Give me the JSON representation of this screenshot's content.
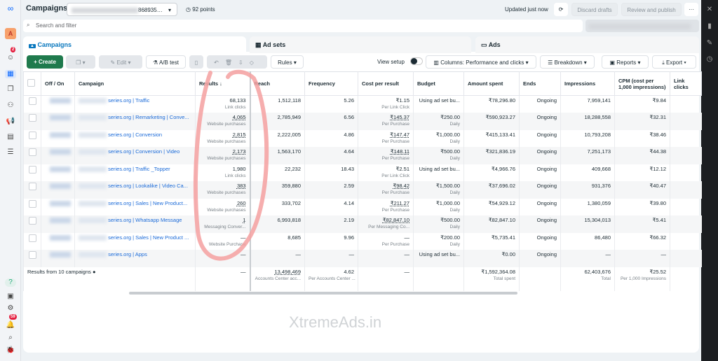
{
  "header": {
    "title": "Campaigns",
    "account_suffix": "868935…",
    "points": "92 points",
    "updated": "Updated just now",
    "discard": "Discard drafts",
    "review": "Review and publish",
    "more": "···"
  },
  "sidebar": {
    "avatar": "A",
    "notif_badge": "2",
    "alerts_badge": "59",
    "help": "?"
  },
  "search": {
    "placeholder": "Search and filter"
  },
  "tabs": [
    {
      "label": "Campaigns"
    },
    {
      "label": "Ad sets"
    },
    {
      "label": "Ads"
    }
  ],
  "toolbar": {
    "create": "+ Create",
    "edit": "Edit",
    "ab_test": "A/B test",
    "rules": "Rules ▾",
    "view_setup": "View setup",
    "columns": "Columns: Performance and clicks ▾",
    "breakdown": "Breakdown ▾",
    "reports": "Reports ▾",
    "export": "Export ▾"
  },
  "columns": [
    "Off / On",
    "Campaign",
    "Results ↓",
    "Reach",
    "Frequency",
    "Cost per result",
    "Budget",
    "Amount spent",
    "Ends",
    "Impressions",
    "CPM (cost per 1,000 impressions)",
    "Link clicks"
  ],
  "rows": [
    {
      "name": "series.org | Traffic",
      "results": "68,133",
      "results_sub": "Link clicks",
      "reach": "1,512,118",
      "freq": "5.26",
      "cpr": "₹1.15",
      "cpr_sub": "Per Link Click",
      "budget": "Using ad set bu...",
      "budget_sub": "",
      "spent": "₹78,296.80",
      "ends": "Ongoing",
      "impr": "7,959,141",
      "cpm": "₹9.84"
    },
    {
      "name": "series.org | Remarketing | Conve...",
      "results": "4,065",
      "results_sub": "Website purchases",
      "reach": "2,785,949",
      "freq": "6.56",
      "cpr": "₹145.37",
      "cpr_sub": "Per Purchase",
      "budget": "₹250.00",
      "budget_sub": "Daily",
      "spent": "₹590,923.27",
      "ends": "Ongoing",
      "impr": "18,288,558",
      "cpm": "₹32.31"
    },
    {
      "name": "series.org | Conversion",
      "results": "2,815",
      "results_sub": "Website purchases",
      "reach": "2,222,005",
      "freq": "4.86",
      "cpr": "₹147.47",
      "cpr_sub": "Per Purchase",
      "budget": "₹1,000.00",
      "budget_sub": "Daily",
      "spent": "₹415,133.41",
      "ends": "Ongoing",
      "impr": "10,793,208",
      "cpm": "₹38.46"
    },
    {
      "name": "series.org | Conversion | Video",
      "results": "2,173",
      "results_sub": "Website purchases",
      "reach": "1,563,170",
      "freq": "4.64",
      "cpr": "₹148.11",
      "cpr_sub": "Per Purchase",
      "budget": "₹500.00",
      "budget_sub": "Daily",
      "spent": "₹321,836.19",
      "ends": "Ongoing",
      "impr": "7,251,173",
      "cpm": "₹44.38"
    },
    {
      "name": "series.org | Traffic _Topper",
      "results": "1,980",
      "results_sub": "Link clicks",
      "reach": "22,232",
      "freq": "18.43",
      "cpr": "₹2.51",
      "cpr_sub": "Per Link Click",
      "budget": "Using ad set bu...",
      "budget_sub": "",
      "spent": "₹4,966.76",
      "ends": "Ongoing",
      "impr": "409,668",
      "cpm": "₹12.12"
    },
    {
      "name": "series.org | Lookalike | Video Ca...",
      "results": "383",
      "results_sub": "Website purchases",
      "reach": "359,880",
      "freq": "2.59",
      "cpr": "₹98.42",
      "cpr_sub": "Per Purchase",
      "budget": "₹1,500.00",
      "budget_sub": "Daily",
      "spent": "₹37,696.02",
      "ends": "Ongoing",
      "impr": "931,376",
      "cpm": "₹40.47"
    },
    {
      "name": "series.org | Sales | New Product...",
      "results": "260",
      "results_sub": "Website purchases",
      "reach": "333,702",
      "freq": "4.14",
      "cpr": "₹211.27",
      "cpr_sub": "Per Purchase",
      "budget": "₹1,000.00",
      "budget_sub": "Daily",
      "spent": "₹54,929.12",
      "ends": "Ongoing",
      "impr": "1,380,059",
      "cpm": "₹39.80"
    },
    {
      "name": "series.org | Whatsapp Message",
      "results": "1",
      "results_sub": "Messaging Conver...",
      "reach": "6,993,818",
      "freq": "2.19",
      "cpr": "₹82,847.10",
      "cpr_sub": "Per Messaging Co...",
      "budget": "₹500.00",
      "budget_sub": "Daily",
      "spent": "₹82,847.10",
      "ends": "Ongoing",
      "impr": "15,304,013",
      "cpm": "₹5.41"
    },
    {
      "name": "series.org | Sales | New Product ...",
      "results": "—",
      "results_sub": "Website Purchase",
      "reach": "8,685",
      "freq": "9.96",
      "cpr": "—",
      "cpr_sub": "Per Purchase",
      "budget": "₹200.00",
      "budget_sub": "Daily",
      "spent": "₹5,735.41",
      "ends": "Ongoing",
      "impr": "86,480",
      "cpm": "₹66.32"
    },
    {
      "name": "series.org | Apps",
      "results": "—",
      "results_sub": "",
      "reach": "—",
      "freq": "—",
      "cpr": "—",
      "cpr_sub": "",
      "budget": "Using ad set bu...",
      "budget_sub": "",
      "spent": "₹0.00",
      "ends": "Ongoing",
      "impr": "—",
      "cpm": "—"
    }
  ],
  "totals": {
    "label": "Results from 10 campaigns",
    "results": "—",
    "reach": "13,498,469",
    "reach_sub": "Accounts Center acc...",
    "freq": "4.62",
    "freq_sub": "Per Accounts Center ...",
    "cpr": "—",
    "spent": "₹1,592,364.08",
    "spent_sub": "Total spent",
    "impr": "62,403,676",
    "impr_sub": "Total",
    "cpm": "₹25.52",
    "cpm_sub": "Per 1,000 Impressions"
  },
  "watermark": "XtremeAds.in",
  "colors": {
    "accent": "#0a78be",
    "create": "#1f7a4d",
    "annotation": "#f4a0a0",
    "link": "#1a6ad8"
  }
}
